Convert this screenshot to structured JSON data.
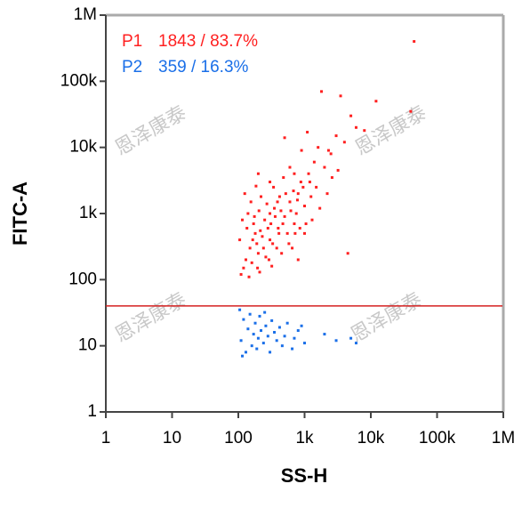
{
  "chart_data": {
    "type": "scatter",
    "x_label": "SS-H",
    "y_label": "FITC-A",
    "xscale": "log",
    "yscale": "log",
    "xlim": [
      1,
      1000000
    ],
    "ylim": [
      1,
      1000000
    ],
    "xticks": [
      1,
      10,
      100,
      {
        "value": 1000,
        "label": "1k"
      },
      {
        "value": 10000,
        "label": "10k"
      },
      {
        "value": 100000,
        "label": "100k"
      },
      {
        "value": 1000000,
        "label": "1M"
      }
    ],
    "yticks": [
      1,
      10,
      100,
      {
        "value": 1000,
        "label": "1k"
      },
      {
        "value": 10000,
        "label": "10k"
      },
      {
        "value": 100000,
        "label": "100k"
      },
      {
        "value": 1000000,
        "label": "1M"
      }
    ],
    "gate": {
      "value": 40,
      "color": "#d42020"
    },
    "watermark": "恩泽康泰",
    "series": [
      {
        "name": "P1",
        "stat_label": "1843 / 83.7%",
        "color": "#ff2020",
        "x": [
          120,
          150,
          180,
          200,
          250,
          300,
          350,
          400,
          500,
          600,
          700,
          800,
          1000,
          1200,
          1500,
          2000,
          2500,
          3000,
          4000,
          5000,
          1800,
          3500,
          12000,
          45000,
          40000,
          6000,
          8000,
          500,
          900,
          1100,
          110,
          130,
          105,
          140,
          160,
          170,
          190,
          210,
          220,
          230,
          260,
          280,
          300,
          320,
          340,
          380,
          420,
          450,
          480,
          550,
          650,
          700,
          750,
          850,
          950,
          1300,
          1400,
          1700,
          2200,
          2600,
          3200,
          4500,
          800,
          115,
          125,
          135,
          145,
          155,
          165,
          175,
          185,
          195,
          205,
          215,
          240,
          270,
          290,
          310,
          330,
          360,
          390,
          410,
          440,
          470,
          520,
          580,
          620,
          680,
          720,
          780,
          880,
          1050,
          1150,
          1600,
          2300,
          600,
          300,
          200,
          1000,
          1250
        ],
        "values": [
          150,
          300,
          500,
          250,
          800,
          400,
          1200,
          600,
          900,
          1500,
          700,
          2000,
          1300,
          3000,
          2500,
          5000,
          8000,
          15000,
          12000,
          30000,
          70000,
          60000,
          50000,
          400000,
          35000,
          20000,
          18000,
          14000,
          9000,
          17000,
          120,
          200,
          400,
          1000,
          180,
          700,
          350,
          130,
          1800,
          450,
          220,
          600,
          1000,
          160,
          2500,
          300,
          1800,
          250,
          3500,
          500,
          300,
          4000,
          1000,
          600,
          2500,
          800,
          6000,
          1200,
          2000,
          3500,
          4500,
          250,
          200,
          800,
          2000,
          600,
          110,
          1500,
          400,
          900,
          2600,
          150,
          1100,
          550,
          300,
          1400,
          200,
          700,
          350,
          900,
          1500,
          500,
          1100,
          700,
          2000,
          350,
          1100,
          2200,
          500,
          1600,
          3000,
          700,
          4000,
          10000,
          9000,
          5000,
          3000,
          4000,
          500,
          1800
        ]
      },
      {
        "name": "P2",
        "stat_label": "359 / 16.3%",
        "color": "#1a6fe8",
        "x": [
          110,
          120,
          130,
          140,
          150,
          160,
          170,
          180,
          190,
          200,
          210,
          220,
          240,
          260,
          280,
          300,
          320,
          350,
          380,
          420,
          460,
          500,
          550,
          650,
          800,
          1000,
          2000,
          3000,
          5000,
          6000,
          105,
          115,
          250,
          700,
          900
        ],
        "values": [
          12,
          25,
          8,
          18,
          30,
          10,
          15,
          22,
          9,
          13,
          28,
          17,
          11,
          20,
          14,
          8,
          24,
          16,
          12,
          19,
          10,
          14,
          22,
          9,
          17,
          11,
          15,
          12,
          13,
          11,
          35,
          7,
          32,
          13,
          20
        ]
      }
    ]
  }
}
